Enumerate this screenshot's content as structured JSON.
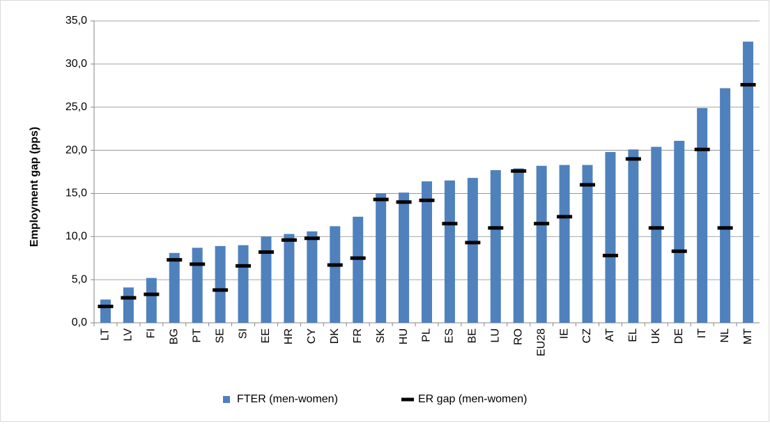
{
  "chart_data": {
    "type": "bar",
    "y_label": "Employment gap (pps)",
    "categories": [
      "LT",
      "LV",
      "FI",
      "BG",
      "PT",
      "SE",
      "SI",
      "EE",
      "HR",
      "CY",
      "DK",
      "FR",
      "SK",
      "HU",
      "PL",
      "ES",
      "BE",
      "LU",
      "RO",
      "EU28",
      "IE",
      "CZ",
      "AT",
      "EL",
      "UK",
      "DE",
      "IT",
      "NL",
      "MT"
    ],
    "series": [
      {
        "name": "FTER (men-women)",
        "color": "#4f81bd",
        "style": "bar",
        "values": [
          2.7,
          4.1,
          5.2,
          8.1,
          8.7,
          8.9,
          9.0,
          10.0,
          10.3,
          10.6,
          11.2,
          12.3,
          15.0,
          15.1,
          16.4,
          16.5,
          16.8,
          17.7,
          17.9,
          18.2,
          18.3,
          18.3,
          19.8,
          20.1,
          20.4,
          21.1,
          24.9,
          27.2,
          32.6
        ]
      },
      {
        "name": "ER gap (men-women)",
        "color": "#000000",
        "style": "dash",
        "values": [
          1.9,
          2.9,
          3.3,
          7.3,
          6.8,
          3.8,
          6.6,
          8.2,
          9.6,
          9.8,
          6.7,
          7.5,
          14.3,
          14.0,
          14.2,
          11.5,
          9.3,
          11.0,
          17.6,
          11.5,
          12.3,
          16.0,
          7.8,
          19.0,
          11.0,
          8.3,
          20.1,
          11.0,
          27.6
        ]
      }
    ],
    "ylim": [
      0,
      35
    ],
    "yticks": [
      {
        "value": 0,
        "label": "0,0"
      },
      {
        "value": 5,
        "label": "5,0"
      },
      {
        "value": 10,
        "label": "10,0"
      },
      {
        "value": 15,
        "label": "15,0"
      },
      {
        "value": 20,
        "label": "20,0"
      },
      {
        "value": 25,
        "label": "25,0"
      },
      {
        "value": 30,
        "label": "30,0"
      },
      {
        "value": 35,
        "label": "35,0"
      }
    ],
    "grid": true,
    "legend": "bottom"
  }
}
